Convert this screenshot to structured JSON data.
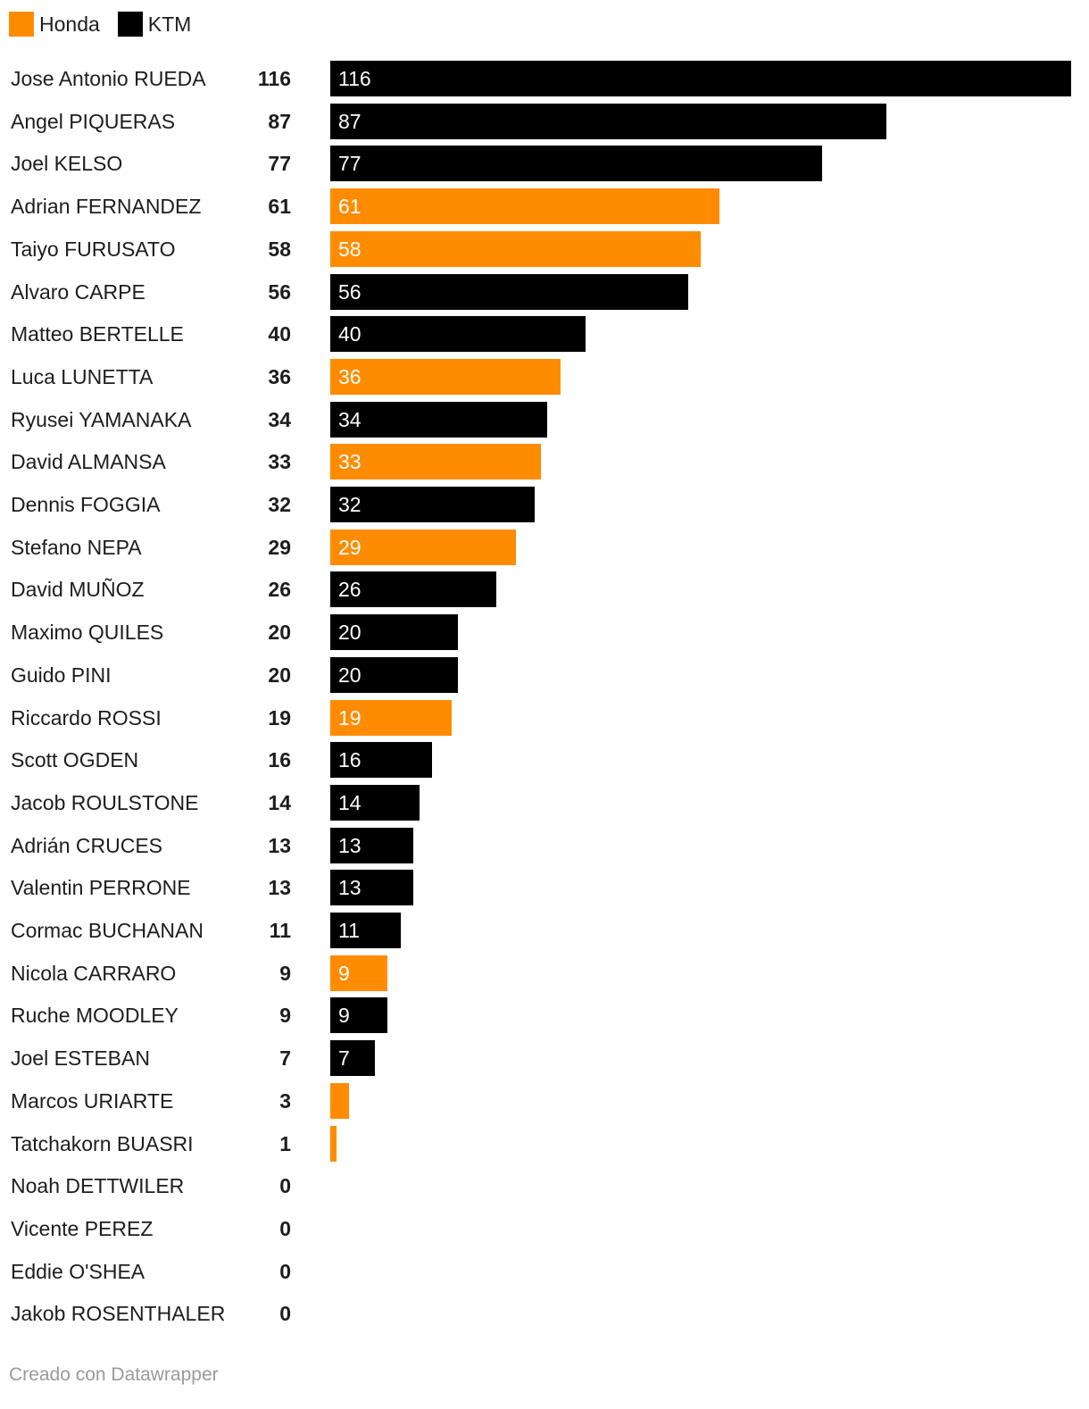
{
  "legend": [
    {
      "label": "Honda",
      "color": "#ff8c00"
    },
    {
      "label": "KTM",
      "color": "#000000"
    }
  ],
  "chart_data": {
    "type": "bar",
    "orientation": "horizontal",
    "xlim": [
      0,
      116
    ],
    "grid": false,
    "legend_placement": "top-left",
    "colors": {
      "Honda": "#ff8c00",
      "KTM": "#000000"
    },
    "rows": [
      {
        "name": "Jose Antonio RUEDA",
        "value": 116,
        "team": "KTM",
        "bar_label": "116"
      },
      {
        "name": "Angel PIQUERAS",
        "value": 87,
        "team": "KTM",
        "bar_label": "87"
      },
      {
        "name": "Joel KELSO",
        "value": 77,
        "team": "KTM",
        "bar_label": "77"
      },
      {
        "name": "Adrian FERNANDEZ",
        "value": 61,
        "team": "Honda",
        "bar_label": "61"
      },
      {
        "name": "Taiyo FURUSATO",
        "value": 58,
        "team": "Honda",
        "bar_label": "58"
      },
      {
        "name": "Alvaro CARPE",
        "value": 56,
        "team": "KTM",
        "bar_label": "56"
      },
      {
        "name": "Matteo BERTELLE",
        "value": 40,
        "team": "KTM",
        "bar_label": "40"
      },
      {
        "name": "Luca LUNETTA",
        "value": 36,
        "team": "Honda",
        "bar_label": "36"
      },
      {
        "name": "Ryusei YAMANAKA",
        "value": 34,
        "team": "KTM",
        "bar_label": "34"
      },
      {
        "name": "David ALMANSA",
        "value": 33,
        "team": "Honda",
        "bar_label": "33"
      },
      {
        "name": "Dennis FOGGIA",
        "value": 32,
        "team": "KTM",
        "bar_label": "32"
      },
      {
        "name": "Stefano NEPA",
        "value": 29,
        "team": "Honda",
        "bar_label": "29"
      },
      {
        "name": "David MUÑOZ",
        "value": 26,
        "team": "KTM",
        "bar_label": "26"
      },
      {
        "name": "Maximo QUILES",
        "value": 20,
        "team": "KTM",
        "bar_label": "20"
      },
      {
        "name": "Guido PINI",
        "value": 20,
        "team": "KTM",
        "bar_label": "20"
      },
      {
        "name": "Riccardo ROSSI",
        "value": 19,
        "team": "Honda",
        "bar_label": "19"
      },
      {
        "name": "Scott OGDEN",
        "value": 16,
        "team": "KTM",
        "bar_label": "16"
      },
      {
        "name": "Jacob ROULSTONE",
        "value": 14,
        "team": "KTM",
        "bar_label": "14"
      },
      {
        "name": "Adrián CRUCES",
        "value": 13,
        "team": "KTM",
        "bar_label": "13"
      },
      {
        "name": "Valentin PERRONE",
        "value": 13,
        "team": "KTM",
        "bar_label": "13"
      },
      {
        "name": "Cormac BUCHANAN",
        "value": 11,
        "team": "KTM",
        "bar_label": "11"
      },
      {
        "name": "Nicola CARRARO",
        "value": 9,
        "team": "Honda",
        "bar_label": "9"
      },
      {
        "name": "Ruche MOODLEY",
        "value": 9,
        "team": "KTM",
        "bar_label": "9"
      },
      {
        "name": "Joel ESTEBAN",
        "value": 7,
        "team": "KTM",
        "bar_label": "7"
      },
      {
        "name": "Marcos URIARTE",
        "value": 3,
        "team": "Honda",
        "bar_label": ""
      },
      {
        "name": "Tatchakorn BUASRI",
        "value": 1,
        "team": "Honda",
        "bar_label": ""
      },
      {
        "name": "Noah DETTWILER",
        "value": 0,
        "team": "",
        "bar_label": ""
      },
      {
        "name": "Vicente PEREZ",
        "value": 0,
        "team": "",
        "bar_label": ""
      },
      {
        "name": "Eddie O'SHEA",
        "value": 0,
        "team": "",
        "bar_label": ""
      },
      {
        "name": "Jakob ROSENTHALER",
        "value": 0,
        "team": "",
        "bar_label": ""
      }
    ]
  },
  "footer": {
    "credit": "Creado con Datawrapper"
  }
}
